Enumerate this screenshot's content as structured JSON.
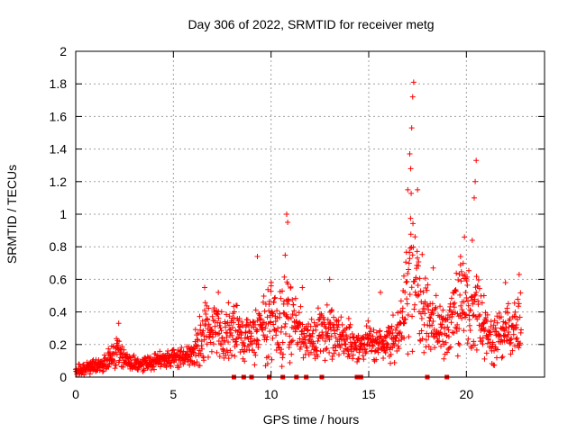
{
  "chart_data": {
    "type": "scatter",
    "title": "Day 306 of 2022, SRMTID for receiver metg",
    "xlabel": "GPS time / hours",
    "ylabel": "SRMTID / TECUs",
    "xlim": [
      0,
      24
    ],
    "ylim": [
      0,
      2
    ],
    "xticks": [
      0,
      5,
      10,
      15,
      20
    ],
    "xtick_labels": [
      "0",
      "5",
      "10",
      "15",
      "20"
    ],
    "yticks": [
      0,
      0.2,
      0.4,
      0.6,
      0.8,
      1,
      1.2,
      1.4,
      1.6,
      1.8,
      2
    ],
    "ytick_labels": [
      "0",
      "0.2",
      "0.4",
      "0.6",
      "0.8",
      "1",
      "1.2",
      "1.4",
      "1.6",
      "1.8",
      "2"
    ],
    "grid": true,
    "marker_color": "#ff0000",
    "series": [
      {
        "name": "SRMTID",
        "marker": "plus",
        "envelope": {
          "x": [
            0,
            0.5,
            1,
            1.5,
            2,
            2.2,
            2.6,
            3,
            3.5,
            4,
            4.5,
            5,
            5.5,
            6,
            6.3,
            6.5,
            7,
            7.5,
            8,
            8.5,
            9,
            9.5,
            10,
            10.5,
            10.8,
            11,
            11.5,
            12,
            12.5,
            13,
            13.5,
            14,
            14.5,
            15,
            15.5,
            16,
            16.5,
            16.8,
            17,
            17.2,
            17.5,
            18,
            18.5,
            19,
            19.5,
            20,
            20.3,
            20.6,
            21,
            21.5,
            22,
            22.5,
            22.8
          ],
          "center": [
            0.04,
            0.05,
            0.07,
            0.1,
            0.14,
            0.17,
            0.1,
            0.09,
            0.08,
            0.1,
            0.11,
            0.12,
            0.13,
            0.15,
            0.2,
            0.25,
            0.28,
            0.25,
            0.3,
            0.26,
            0.22,
            0.3,
            0.33,
            0.3,
            0.45,
            0.32,
            0.28,
            0.22,
            0.28,
            0.3,
            0.25,
            0.23,
            0.2,
            0.22,
            0.2,
            0.22,
            0.25,
            0.35,
            0.55,
            0.7,
            0.5,
            0.35,
            0.3,
            0.28,
            0.38,
            0.45,
            0.35,
            0.4,
            0.25,
            0.22,
            0.3,
            0.3,
            0.32
          ],
          "spread": [
            0.03,
            0.03,
            0.04,
            0.05,
            0.08,
            0.1,
            0.05,
            0.04,
            0.04,
            0.05,
            0.05,
            0.05,
            0.06,
            0.06,
            0.15,
            0.18,
            0.15,
            0.14,
            0.16,
            0.14,
            0.14,
            0.2,
            0.2,
            0.2,
            0.3,
            0.2,
            0.14,
            0.12,
            0.16,
            0.16,
            0.12,
            0.1,
            0.1,
            0.1,
            0.1,
            0.12,
            0.15,
            0.22,
            0.4,
            0.5,
            0.3,
            0.2,
            0.16,
            0.14,
            0.22,
            0.3,
            0.25,
            0.25,
            0.15,
            0.13,
            0.16,
            0.16,
            0.18
          ]
        },
        "peaks": [
          {
            "x": 2.2,
            "y": 0.33
          },
          {
            "x": 6.6,
            "y": 0.55
          },
          {
            "x": 7.3,
            "y": 0.52
          },
          {
            "x": 9.3,
            "y": 0.74
          },
          {
            "x": 10.0,
            "y": 0.56
          },
          {
            "x": 10.8,
            "y": 1.0
          },
          {
            "x": 10.85,
            "y": 0.95
          },
          {
            "x": 11.6,
            "y": 0.55
          },
          {
            "x": 13.0,
            "y": 0.6
          },
          {
            "x": 15.6,
            "y": 0.52
          },
          {
            "x": 16.8,
            "y": 0.62
          },
          {
            "x": 17.0,
            "y": 1.15
          },
          {
            "x": 17.1,
            "y": 1.37
          },
          {
            "x": 17.15,
            "y": 1.28
          },
          {
            "x": 17.2,
            "y": 1.53
          },
          {
            "x": 17.25,
            "y": 1.72
          },
          {
            "x": 17.3,
            "y": 1.81
          },
          {
            "x": 17.5,
            "y": 1.15
          },
          {
            "x": 18.3,
            "y": 0.67
          },
          {
            "x": 19.9,
            "y": 0.86
          },
          {
            "x": 19.7,
            "y": 0.74
          },
          {
            "x": 20.5,
            "y": 1.33
          },
          {
            "x": 20.45,
            "y": 1.2
          },
          {
            "x": 20.4,
            "y": 1.1
          },
          {
            "x": 20.3,
            "y": 0.84
          },
          {
            "x": 20.9,
            "y": 0.5
          },
          {
            "x": 22.0,
            "y": 0.58
          },
          {
            "x": 22.7,
            "y": 0.63
          }
        ],
        "zeros": [
          8.1,
          8.6,
          9.0,
          9.9,
          10.6,
          11.3,
          11.8,
          12.6,
          14.4,
          14.6,
          18.0,
          19.0
        ]
      }
    ]
  }
}
